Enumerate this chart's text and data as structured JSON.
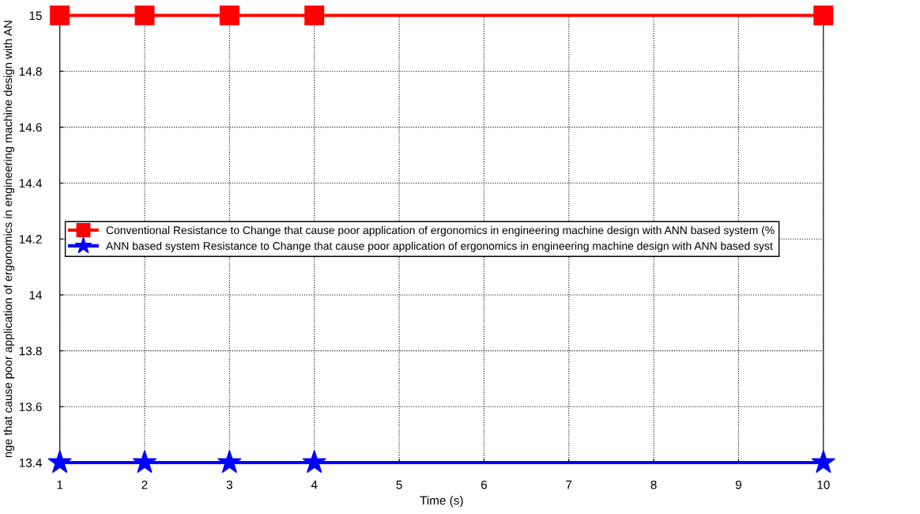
{
  "chart_data": {
    "type": "line",
    "xlabel": "Time (s)",
    "ylabel": "nge that cause poor application of ergonomics in engineering machine design with AN",
    "x": [
      1,
      2,
      3,
      4,
      10
    ],
    "series": [
      {
        "name": "Conventional Resistance to Change that cause poor application of ergonomics in engineering machine design with ANN based system (%",
        "color": "#ff0000",
        "marker": "square",
        "values": [
          15,
          15,
          15,
          15,
          15
        ]
      },
      {
        "name": "ANN based system Resistance to Change that cause poor application of ergonomics in engineering machine design with ANN based syst",
        "color": "#0000ff",
        "marker": "star",
        "values": [
          13.4,
          13.4,
          13.4,
          13.4,
          13.4
        ]
      }
    ],
    "xlim": [
      1,
      10
    ],
    "xticks": [
      1,
      2,
      3,
      4,
      5,
      6,
      7,
      8,
      9,
      10
    ],
    "ylim": [
      13.4,
      15
    ],
    "yticks": [
      13.4,
      13.6,
      13.8,
      14,
      14.2,
      14.4,
      14.6,
      14.8,
      15
    ],
    "grid": true,
    "legend": "left",
    "line_style": "solid"
  }
}
